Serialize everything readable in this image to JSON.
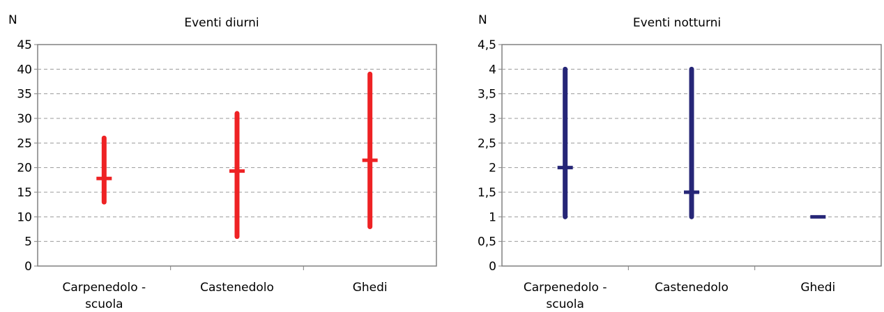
{
  "chart_data": [
    {
      "type": "range",
      "title": "Eventi diurni",
      "ylabel": "N",
      "xlabel": "",
      "categories": [
        "Carpenedolo - scuola",
        "Castenedolo",
        "Ghedi"
      ],
      "ylim": [
        0,
        45
      ],
      "yticks": [
        0,
        5,
        10,
        15,
        20,
        25,
        30,
        35,
        40,
        45
      ],
      "ytick_labels": [
        "0",
        "5",
        "10",
        "15",
        "20",
        "25",
        "30",
        "35",
        "40",
        "45"
      ],
      "grid": true,
      "color": "#ee2224",
      "series": [
        {
          "low": [
            13,
            6,
            8
          ],
          "high": [
            26,
            31,
            39
          ],
          "mid": [
            17.8,
            19.3,
            21.5
          ]
        }
      ]
    },
    {
      "type": "range",
      "title": "Eventi notturni",
      "ylabel": "N",
      "xlabel": "",
      "categories": [
        "Carpenedolo - scuola",
        "Castenedolo",
        "Ghedi"
      ],
      "ylim": [
        0,
        4.5
      ],
      "yticks": [
        0,
        0.5,
        1,
        1.5,
        2,
        2.5,
        3,
        3.5,
        4,
        4.5
      ],
      "ytick_labels": [
        "0",
        "0,5",
        "1",
        "1,5",
        "2",
        "2,5",
        "3",
        "3,5",
        "4",
        "4,5"
      ],
      "grid": true,
      "color": "#262677",
      "series": [
        {
          "low": [
            1,
            1,
            1
          ],
          "high": [
            4,
            4,
            1
          ],
          "mid": [
            2,
            1.5,
            1
          ]
        }
      ]
    }
  ]
}
